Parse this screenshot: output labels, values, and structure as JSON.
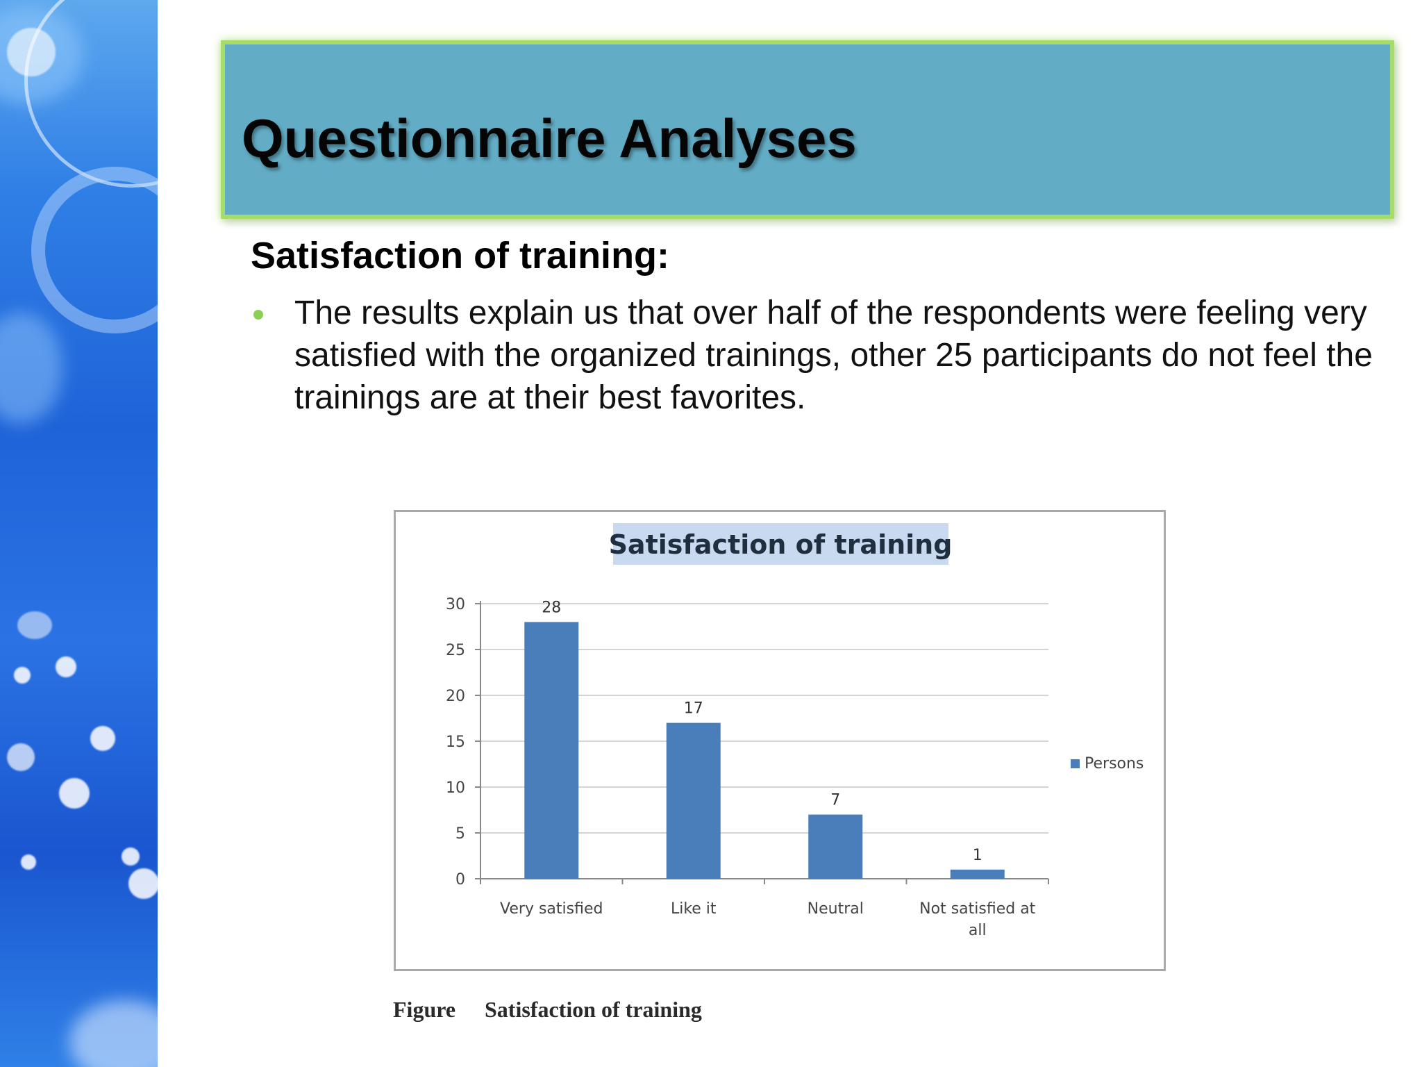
{
  "slide": {
    "title": "Questionnaire Analyses",
    "subheading": "Satisfaction of training:",
    "bullet": "The results explain us that over half of the respondents were feeling very satisfied with the organized trainings, other 25 participants do not feel the trainings are at their best favorites."
  },
  "caption": {
    "label": "Figure",
    "title": "Satisfaction of training"
  },
  "colors": {
    "banner": "#62acc5",
    "banner_border": "#a6dc6a",
    "bullet": "#8ccf55",
    "bar": "#4a7ebb"
  },
  "chart_data": {
    "type": "bar",
    "title": "Satisfaction of training",
    "categories": [
      "Very satisfied",
      "Like it",
      "Neutral",
      "Not satisfied at all"
    ],
    "series": [
      {
        "name": "Persons",
        "values": [
          28,
          17,
          7,
          1
        ]
      }
    ],
    "data_labels": [
      "28",
      "17",
      "7",
      "1"
    ],
    "ylim": [
      0,
      30
    ],
    "yticks": [
      "0",
      "5",
      "10",
      "15",
      "20",
      "25",
      "30"
    ],
    "grid": true,
    "legend": "right"
  }
}
